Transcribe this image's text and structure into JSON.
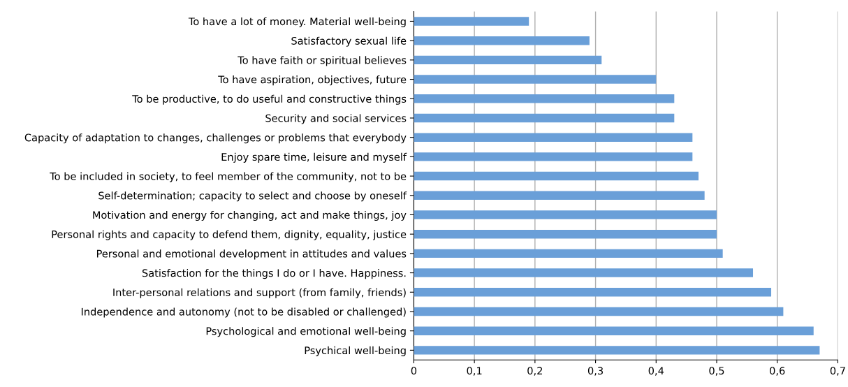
{
  "chart_data": {
    "type": "bar",
    "orientation": "horizontal",
    "categories": [
      "To have a lot of money. Material well-being",
      "Satisfactory sexual life",
      "To have faith or spiritual believes",
      "To have aspiration, objectives, future",
      "To be productive, to do useful and constructive things",
      "Security and social services",
      "Capacity of adaptation to changes, challenges or problems that everybody",
      "Enjoy spare time, leisure and myself",
      "To be included in society, to feel member of the community, not to be",
      "Self-determination; capacity to select and choose by oneself",
      "Motivation and energy for changing, act and make things, joy",
      "Personal rights and capacity to defend them, dignity, equality, justice",
      "Personal and emotional development in attitudes and values",
      "Satisfaction for the things I do or I have. Happiness.",
      "Inter-personal relations and support (from family, friends)",
      "Independence and autonomy (not to be disabled or challenged)",
      "Psychological and emotional well-being",
      "Psychical well-being"
    ],
    "values": [
      0.19,
      0.29,
      0.31,
      0.4,
      0.43,
      0.43,
      0.46,
      0.46,
      0.47,
      0.48,
      0.5,
      0.5,
      0.51,
      0.56,
      0.59,
      0.61,
      0.66,
      0.67
    ],
    "color": "#6a9fd8",
    "xlim": [
      0,
      0.7
    ],
    "xticks": [
      {
        "value": 0,
        "label": "0"
      },
      {
        "value": 0.1,
        "label": "0,1"
      },
      {
        "value": 0.2,
        "label": "0,2"
      },
      {
        "value": 0.3,
        "label": "0,3"
      },
      {
        "value": 0.4,
        "label": "0,4"
      },
      {
        "value": 0.5,
        "label": "0,5"
      },
      {
        "value": 0.6,
        "label": "0,6"
      },
      {
        "value": 0.7,
        "label": "0,7"
      }
    ],
    "grid": "x"
  }
}
